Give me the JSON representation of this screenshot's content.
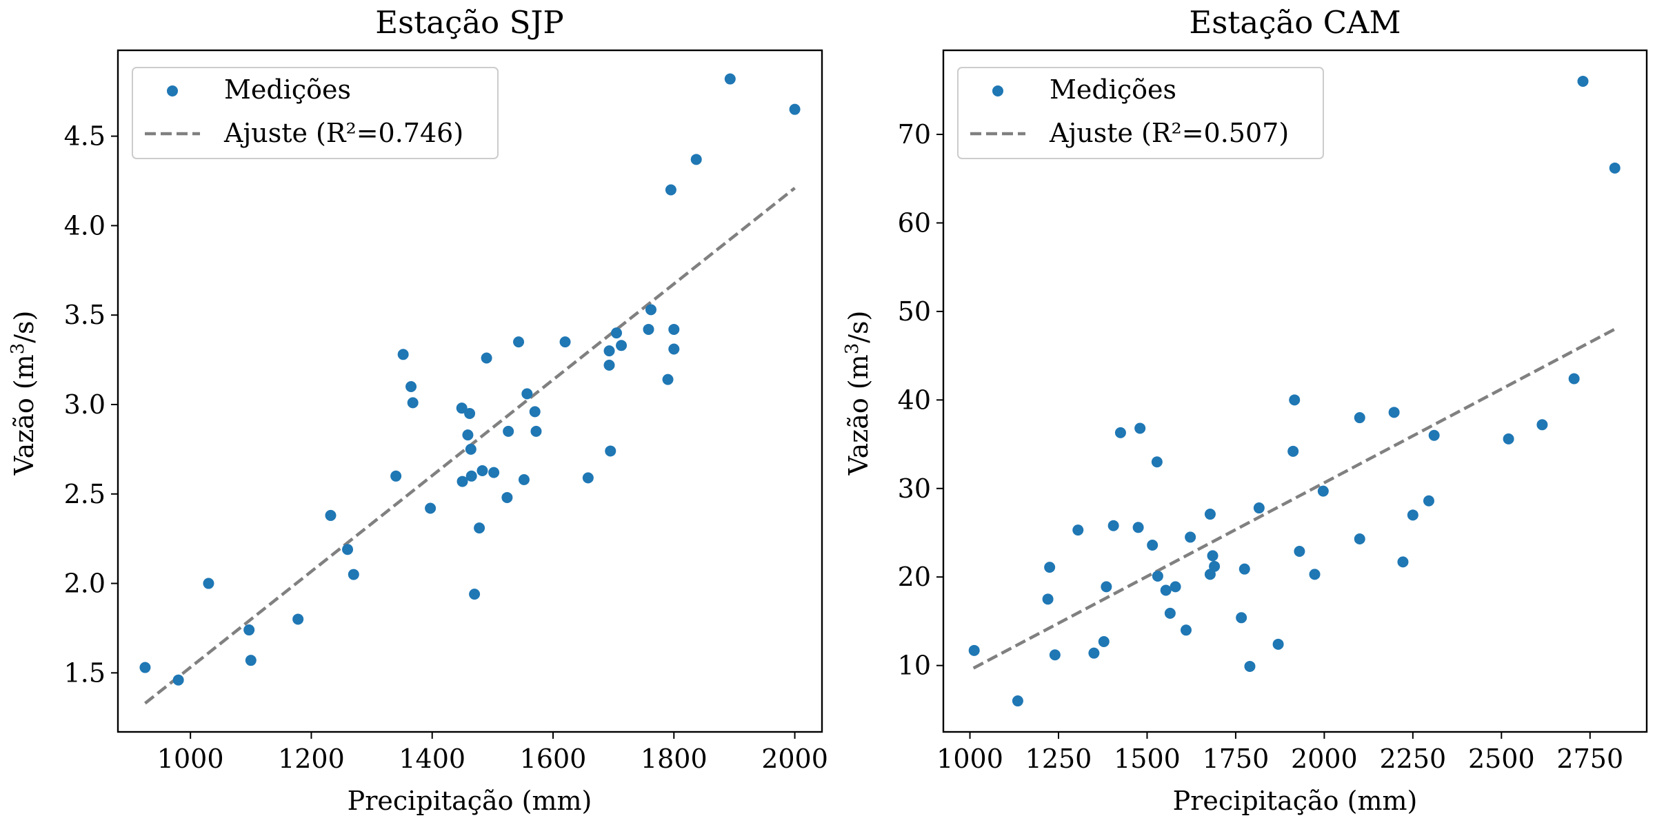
{
  "chart_data": [
    {
      "type": "scatter",
      "title": "Estação SJP",
      "xlabel": "Precipitação (mm)",
      "ylabel_main": "Vazão (m",
      "ylabel_sup": "3",
      "ylabel_tail": "/s)",
      "xlim": [
        880,
        2045
      ],
      "ylim": [
        1.17,
        4.98
      ],
      "xticks": [
        1000,
        1200,
        1400,
        1600,
        1800,
        2000
      ],
      "yticks": [
        1.5,
        2.0,
        2.5,
        3.0,
        3.5,
        4.0,
        4.5
      ],
      "xtick_labels": [
        "1000",
        "1200",
        "1400",
        "1600",
        "1800",
        "2000"
      ],
      "ytick_labels": [
        "1.5",
        "2.0",
        "2.5",
        "3.0",
        "3.5",
        "4.0",
        "4.5"
      ],
      "legend_position": "top-left",
      "scatter_label": "Medições",
      "fit_label": "Ajuste (R²=0.746)",
      "points_color": "#1f77b4",
      "fit_color": "#808080",
      "fit_line": {
        "x": [
          925,
          2000
        ],
        "y": [
          1.33,
          4.21
        ]
      },
      "points": [
        {
          "x": 925,
          "y": 1.53
        },
        {
          "x": 980,
          "y": 1.46
        },
        {
          "x": 1030,
          "y": 2.0
        },
        {
          "x": 1097,
          "y": 1.74
        },
        {
          "x": 1100,
          "y": 1.57
        },
        {
          "x": 1178,
          "y": 1.8
        },
        {
          "x": 1232,
          "y": 2.38
        },
        {
          "x": 1260,
          "y": 2.19
        },
        {
          "x": 1270,
          "y": 2.05
        },
        {
          "x": 1340,
          "y": 2.6
        },
        {
          "x": 1352,
          "y": 3.28
        },
        {
          "x": 1365,
          "y": 3.1
        },
        {
          "x": 1368,
          "y": 3.01
        },
        {
          "x": 1397,
          "y": 2.42
        },
        {
          "x": 1449,
          "y": 2.98
        },
        {
          "x": 1450,
          "y": 2.57
        },
        {
          "x": 1459,
          "y": 2.83
        },
        {
          "x": 1462,
          "y": 2.95
        },
        {
          "x": 1464,
          "y": 2.75
        },
        {
          "x": 1465,
          "y": 2.6
        },
        {
          "x": 1470,
          "y": 1.94
        },
        {
          "x": 1478,
          "y": 2.31
        },
        {
          "x": 1483,
          "y": 2.63
        },
        {
          "x": 1490,
          "y": 3.26
        },
        {
          "x": 1502,
          "y": 2.62
        },
        {
          "x": 1524,
          "y": 2.48
        },
        {
          "x": 1526,
          "y": 2.85
        },
        {
          "x": 1543,
          "y": 3.35
        },
        {
          "x": 1552,
          "y": 2.58
        },
        {
          "x": 1557,
          "y": 3.06
        },
        {
          "x": 1570,
          "y": 2.96
        },
        {
          "x": 1572,
          "y": 2.85
        },
        {
          "x": 1620,
          "y": 3.35
        },
        {
          "x": 1658,
          "y": 2.59
        },
        {
          "x": 1693,
          "y": 3.3
        },
        {
          "x": 1693,
          "y": 3.22
        },
        {
          "x": 1695,
          "y": 2.74
        },
        {
          "x": 1705,
          "y": 3.4
        },
        {
          "x": 1713,
          "y": 3.33
        },
        {
          "x": 1758,
          "y": 3.42
        },
        {
          "x": 1762,
          "y": 3.53
        },
        {
          "x": 1790,
          "y": 3.14
        },
        {
          "x": 1795,
          "y": 4.2
        },
        {
          "x": 1800,
          "y": 3.31
        },
        {
          "x": 1800,
          "y": 3.42
        },
        {
          "x": 1837,
          "y": 4.37
        },
        {
          "x": 1893,
          "y": 4.82
        },
        {
          "x": 2000,
          "y": 4.65
        }
      ]
    },
    {
      "type": "scatter",
      "title": "Estação CAM",
      "xlabel": "Precipitação (mm)",
      "ylabel_main": "Vazão (m",
      "ylabel_sup": "3",
      "ylabel_tail": "/s)",
      "xlim": [
        925,
        2910
      ],
      "ylim": [
        2.5,
        79.5
      ],
      "xticks": [
        1000,
        1250,
        1500,
        1750,
        2000,
        2250,
        2500,
        2750
      ],
      "yticks": [
        10,
        20,
        30,
        40,
        50,
        60,
        70
      ],
      "xtick_labels": [
        "1000",
        "1250",
        "1500",
        "1750",
        "2000",
        "2250",
        "2500",
        "2750"
      ],
      "ytick_labels": [
        "10",
        "20",
        "30",
        "40",
        "50",
        "60",
        "70"
      ],
      "legend_position": "top-left",
      "scatter_label": "Medições",
      "fit_label": "Ajuste (R²=0.507)",
      "points_color": "#1f77b4",
      "fit_color": "#808080",
      "fit_line": {
        "x": [
          1010,
          2820
        ],
        "y": [
          9.7,
          48.0
        ]
      },
      "points": [
        {
          "x": 1012,
          "y": 11.7
        },
        {
          "x": 1135,
          "y": 6.0
        },
        {
          "x": 1220,
          "y": 17.5
        },
        {
          "x": 1225,
          "y": 21.1
        },
        {
          "x": 1240,
          "y": 11.2
        },
        {
          "x": 1305,
          "y": 25.3
        },
        {
          "x": 1350,
          "y": 11.4
        },
        {
          "x": 1378,
          "y": 12.7
        },
        {
          "x": 1385,
          "y": 18.9
        },
        {
          "x": 1405,
          "y": 25.8
        },
        {
          "x": 1425,
          "y": 36.3
        },
        {
          "x": 1475,
          "y": 25.6
        },
        {
          "x": 1480,
          "y": 36.8
        },
        {
          "x": 1515,
          "y": 23.6
        },
        {
          "x": 1528,
          "y": 33.0
        },
        {
          "x": 1530,
          "y": 20.1
        },
        {
          "x": 1553,
          "y": 18.5
        },
        {
          "x": 1565,
          "y": 15.9
        },
        {
          "x": 1580,
          "y": 18.9
        },
        {
          "x": 1610,
          "y": 14.0
        },
        {
          "x": 1622,
          "y": 24.5
        },
        {
          "x": 1678,
          "y": 27.1
        },
        {
          "x": 1678,
          "y": 20.3
        },
        {
          "x": 1685,
          "y": 22.4
        },
        {
          "x": 1690,
          "y": 21.2
        },
        {
          "x": 1766,
          "y": 15.4
        },
        {
          "x": 1775,
          "y": 20.9
        },
        {
          "x": 1790,
          "y": 9.9
        },
        {
          "x": 1816,
          "y": 27.8
        },
        {
          "x": 1870,
          "y": 12.4
        },
        {
          "x": 1912,
          "y": 34.2
        },
        {
          "x": 1916,
          "y": 40.0
        },
        {
          "x": 1930,
          "y": 22.9
        },
        {
          "x": 1973,
          "y": 20.3
        },
        {
          "x": 1997,
          "y": 29.7
        },
        {
          "x": 2100,
          "y": 38.0
        },
        {
          "x": 2100,
          "y": 24.3
        },
        {
          "x": 2197,
          "y": 38.6
        },
        {
          "x": 2222,
          "y": 21.7
        },
        {
          "x": 2250,
          "y": 27.0
        },
        {
          "x": 2295,
          "y": 28.6
        },
        {
          "x": 2310,
          "y": 36.0
        },
        {
          "x": 2520,
          "y": 35.6
        },
        {
          "x": 2615,
          "y": 37.2
        },
        {
          "x": 2705,
          "y": 42.4
        },
        {
          "x": 2730,
          "y": 76.0
        },
        {
          "x": 2820,
          "y": 66.2
        }
      ]
    }
  ]
}
